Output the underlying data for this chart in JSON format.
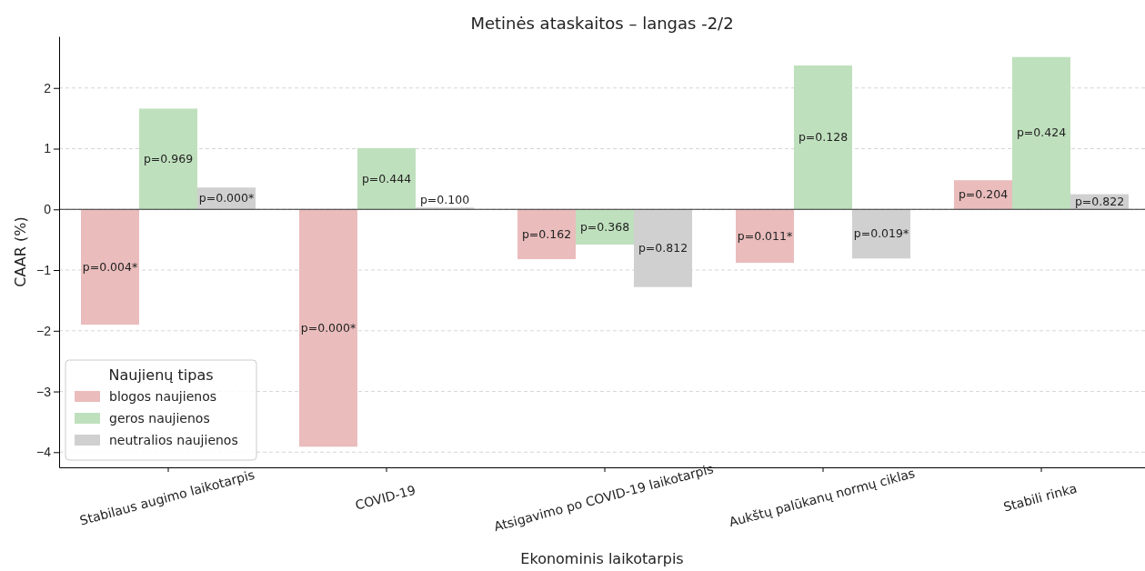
{
  "chart_data": {
    "type": "bar",
    "title": "Metinės ataskaitos – langas -2/2",
    "xlabel": "Ekonominis laikotarpis",
    "ylabel": "CAAR (%)",
    "legend_title": "Naujienų tipas",
    "categories": [
      "Stabilaus augimo laikotarpis",
      "COVID-19",
      "Atsigavimo po COVID-19 laikotarpis",
      "Aukštų palūkanų normų ciklas",
      "Stabili rinka"
    ],
    "series": [
      {
        "name": "blogos naujienos",
        "color": "#eabcbc",
        "values": [
          -1.9,
          -3.91,
          -0.82,
          -0.88,
          0.48
        ]
      },
      {
        "name": "geros naujienos",
        "color": "#bfe0bd",
        "values": [
          1.66,
          1.01,
          -0.58,
          2.37,
          2.51
        ]
      },
      {
        "name": "neutralios naujienos",
        "color": "#d0d0d0",
        "values": [
          0.36,
          0.03,
          -1.28,
          -0.81,
          0.25
        ]
      }
    ],
    "annotations": [
      "p=0.004*",
      "p=0.969",
      "p=0.000*",
      "p=0.000*",
      "p=0.444",
      "p=0.100",
      "p=0.162",
      "p=0.368",
      "p=0.812",
      "p=0.011*",
      "p=0.128",
      "p=0.019*",
      "p=0.204",
      "p=0.424",
      "p=0.822"
    ],
    "ylim": [
      -4.25,
      2.85
    ],
    "yticks": [
      {
        "value": -4,
        "label": "−4"
      },
      {
        "value": -3,
        "label": "−3"
      },
      {
        "value": -2,
        "label": "−2"
      },
      {
        "value": -1,
        "label": "−1"
      },
      0,
      1,
      2
    ],
    "grid": "y",
    "legend": "bottom left",
    "ref_lines": [
      {
        "axis": "y",
        "value": 0,
        "color": "#333333"
      }
    ]
  }
}
